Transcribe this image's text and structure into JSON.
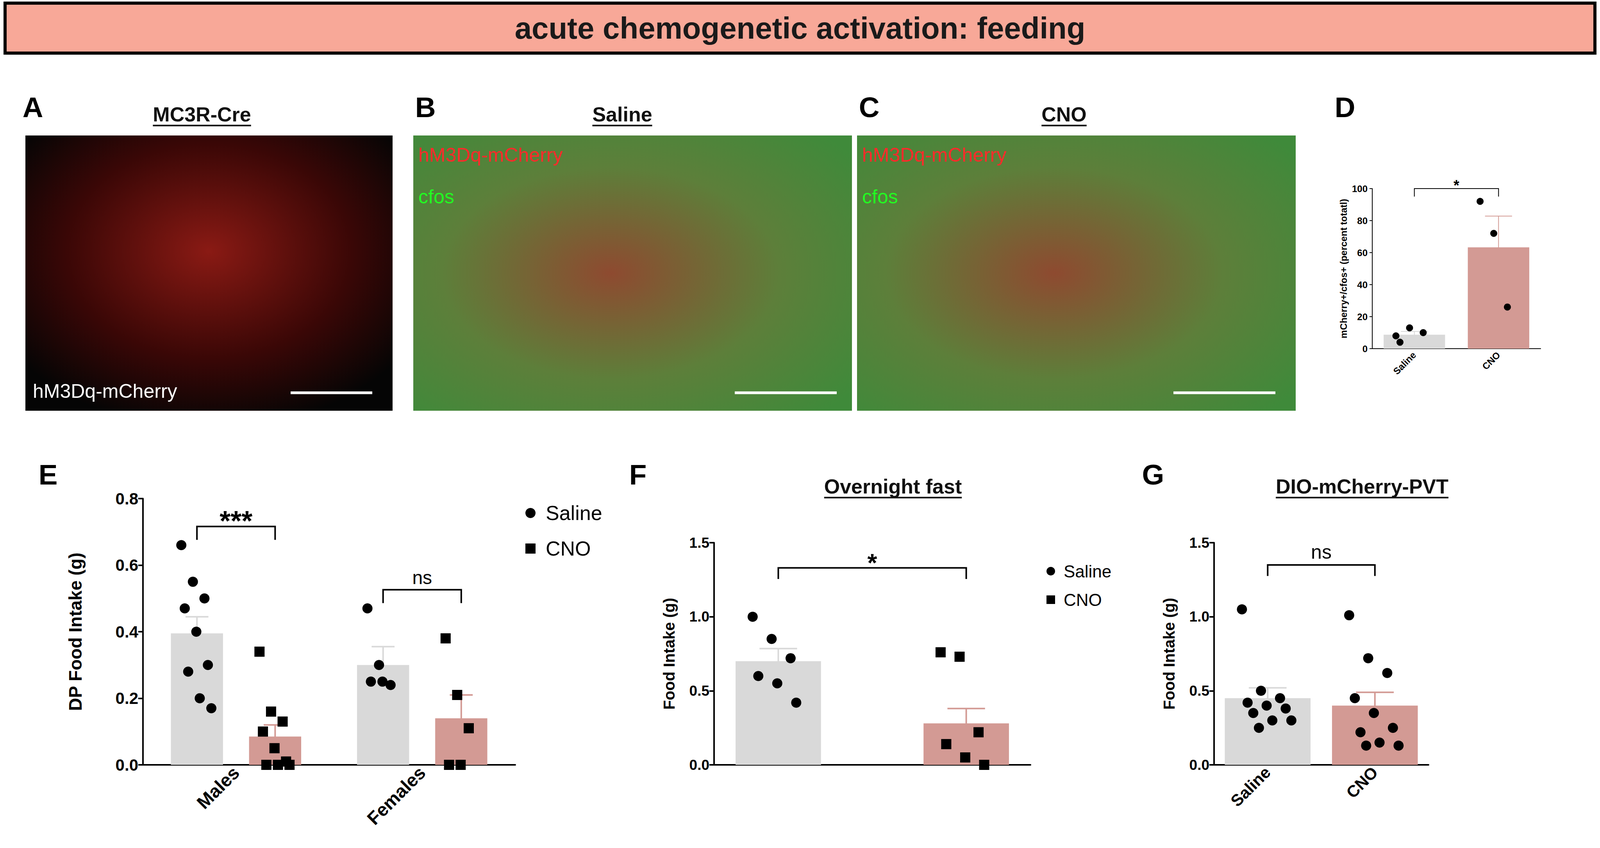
{
  "title": "acute chemogenetic activation: feeding",
  "images": [
    {
      "panel": "A",
      "title": "MC3R-Cre",
      "labels": [
        {
          "text": "hM3Dq-mCherry",
          "color": "#ffffff"
        }
      ]
    },
    {
      "panel": "B",
      "title": "Saline",
      "labels": [
        {
          "text": "hM3Dq-mCherry",
          "color": "#ff2a2a"
        },
        {
          "text": "cfos",
          "color": "#22ff22"
        }
      ]
    },
    {
      "panel": "C",
      "title": "CNO",
      "labels": [
        {
          "text": "hM3Dq-mCherry",
          "color": "#ff2a2a"
        },
        {
          "text": "cfos",
          "color": "#22ff22"
        }
      ]
    }
  ],
  "chart_data": [
    {
      "panel": "D",
      "type": "bar",
      "ylabel": "mCherry+/cfos+ (percent totatl)",
      "categories": [
        "Saline",
        "CNO"
      ],
      "series": [
        {
          "colors": [
            "#d9d9d9",
            "#d39a94"
          ],
          "marker": "circle",
          "values": [
            8.75,
            63.3
          ],
          "errors": [
            2.0,
            19.5
          ],
          "points": [
            [
              8,
              13,
              10,
              4
            ],
            [
              92,
              72,
              26
            ]
          ]
        }
      ],
      "ylim": [
        0,
        100
      ],
      "yticks": [
        0,
        20,
        40,
        60,
        80,
        100
      ],
      "grid": false,
      "annotations": [
        {
          "text": "*"
        }
      ]
    },
    {
      "panel": "E",
      "type": "bar",
      "ylabel": "DP Food Intake (g)",
      "categories": [
        "Males",
        "Females"
      ],
      "series": [
        {
          "name": "Saline",
          "color": "#d9d9d9",
          "marker": "circle",
          "values": [
            0.395,
            0.3
          ],
          "errors": [
            0.05,
            0.055
          ],
          "points": [
            [
              0.66,
              0.55,
              0.5,
              0.47,
              0.4,
              0.3,
              0.28,
              0.2,
              0.17
            ],
            [
              0.47,
              0.3,
              0.24,
              0.25,
              0.25
            ]
          ]
        },
        {
          "name": "CNO",
          "color": "#d39a94",
          "marker": "square",
          "values": [
            0.085,
            0.14
          ],
          "errors": [
            0.035,
            0.07
          ],
          "points": [
            [
              0.34,
              0.16,
              0.13,
              0.1,
              0.05,
              0.01,
              0.0,
              0.0,
              0.0
            ],
            [
              0.38,
              0.21,
              0.11,
              0.0,
              0.0
            ]
          ]
        }
      ],
      "ylim": [
        0,
        0.8
      ],
      "yticks": [
        {
          "value": 0,
          "label": "0.0"
        },
        {
          "value": 0.2,
          "label": "0.2"
        },
        {
          "value": 0.4,
          "label": "0.4"
        },
        {
          "value": 0.6,
          "label": "0.6"
        },
        {
          "value": 0.8,
          "label": "0.8"
        }
      ],
      "grid": false,
      "legend": "upper right",
      "annotations": [
        {
          "text": "***",
          "category": "Males"
        },
        {
          "text": "ns",
          "category": "Females"
        }
      ]
    },
    {
      "panel": "F",
      "type": "bar",
      "title": "Overnight fast",
      "ylabel": "Food Intake (g)",
      "categories": [
        null
      ],
      "series": [
        {
          "name": "Saline",
          "color": "#d9d9d9",
          "marker": "circle",
          "values": [
            0.7
          ],
          "errors": [
            0.085
          ],
          "points": [
            [
              1.0,
              0.85,
              0.72,
              0.6,
              0.55,
              0.42
            ]
          ]
        },
        {
          "name": "CNO",
          "color": "#d39a94",
          "marker": "square",
          "values": [
            0.28
          ],
          "errors": [
            0.1
          ],
          "points": [
            [
              0.76,
              0.73,
              0.22,
              0.14,
              0.05,
              0.0
            ]
          ]
        }
      ],
      "ylim": [
        0,
        1.5
      ],
      "yticks": [
        {
          "value": 0,
          "label": "0.0"
        },
        {
          "value": 0.5,
          "label": "0.5"
        },
        {
          "value": 1.0,
          "label": "1.0"
        },
        {
          "value": 1.5,
          "label": "1.5"
        }
      ],
      "grid": false,
      "legend": "upper right",
      "annotations": [
        {
          "text": "*"
        }
      ]
    },
    {
      "panel": "G",
      "type": "bar",
      "title": "DIO-mCherry-PVT",
      "ylabel": "Food Intake (g)",
      "categories": [
        "Saline",
        "CNO"
      ],
      "series": [
        {
          "colors": [
            "#d9d9d9",
            "#d39a94"
          ],
          "marker": "circle",
          "values": [
            0.45,
            0.4
          ],
          "errors": [
            0.07,
            0.09
          ],
          "points": [
            [
              1.05,
              0.5,
              0.45,
              0.42,
              0.4,
              0.38,
              0.35,
              0.3,
              0.3,
              0.25
            ],
            [
              1.01,
              0.72,
              0.62,
              0.45,
              0.35,
              0.25,
              0.22,
              0.15,
              0.13,
              0.13
            ]
          ]
        }
      ],
      "ylim": [
        0,
        1.5
      ],
      "yticks": [
        {
          "value": 0,
          "label": "0.0"
        },
        {
          "value": 0.5,
          "label": "0.5"
        },
        {
          "value": 1.0,
          "label": "1.0"
        },
        {
          "value": 1.5,
          "label": "1.5"
        }
      ],
      "grid": false,
      "annotations": [
        {
          "text": "ns"
        }
      ]
    }
  ]
}
